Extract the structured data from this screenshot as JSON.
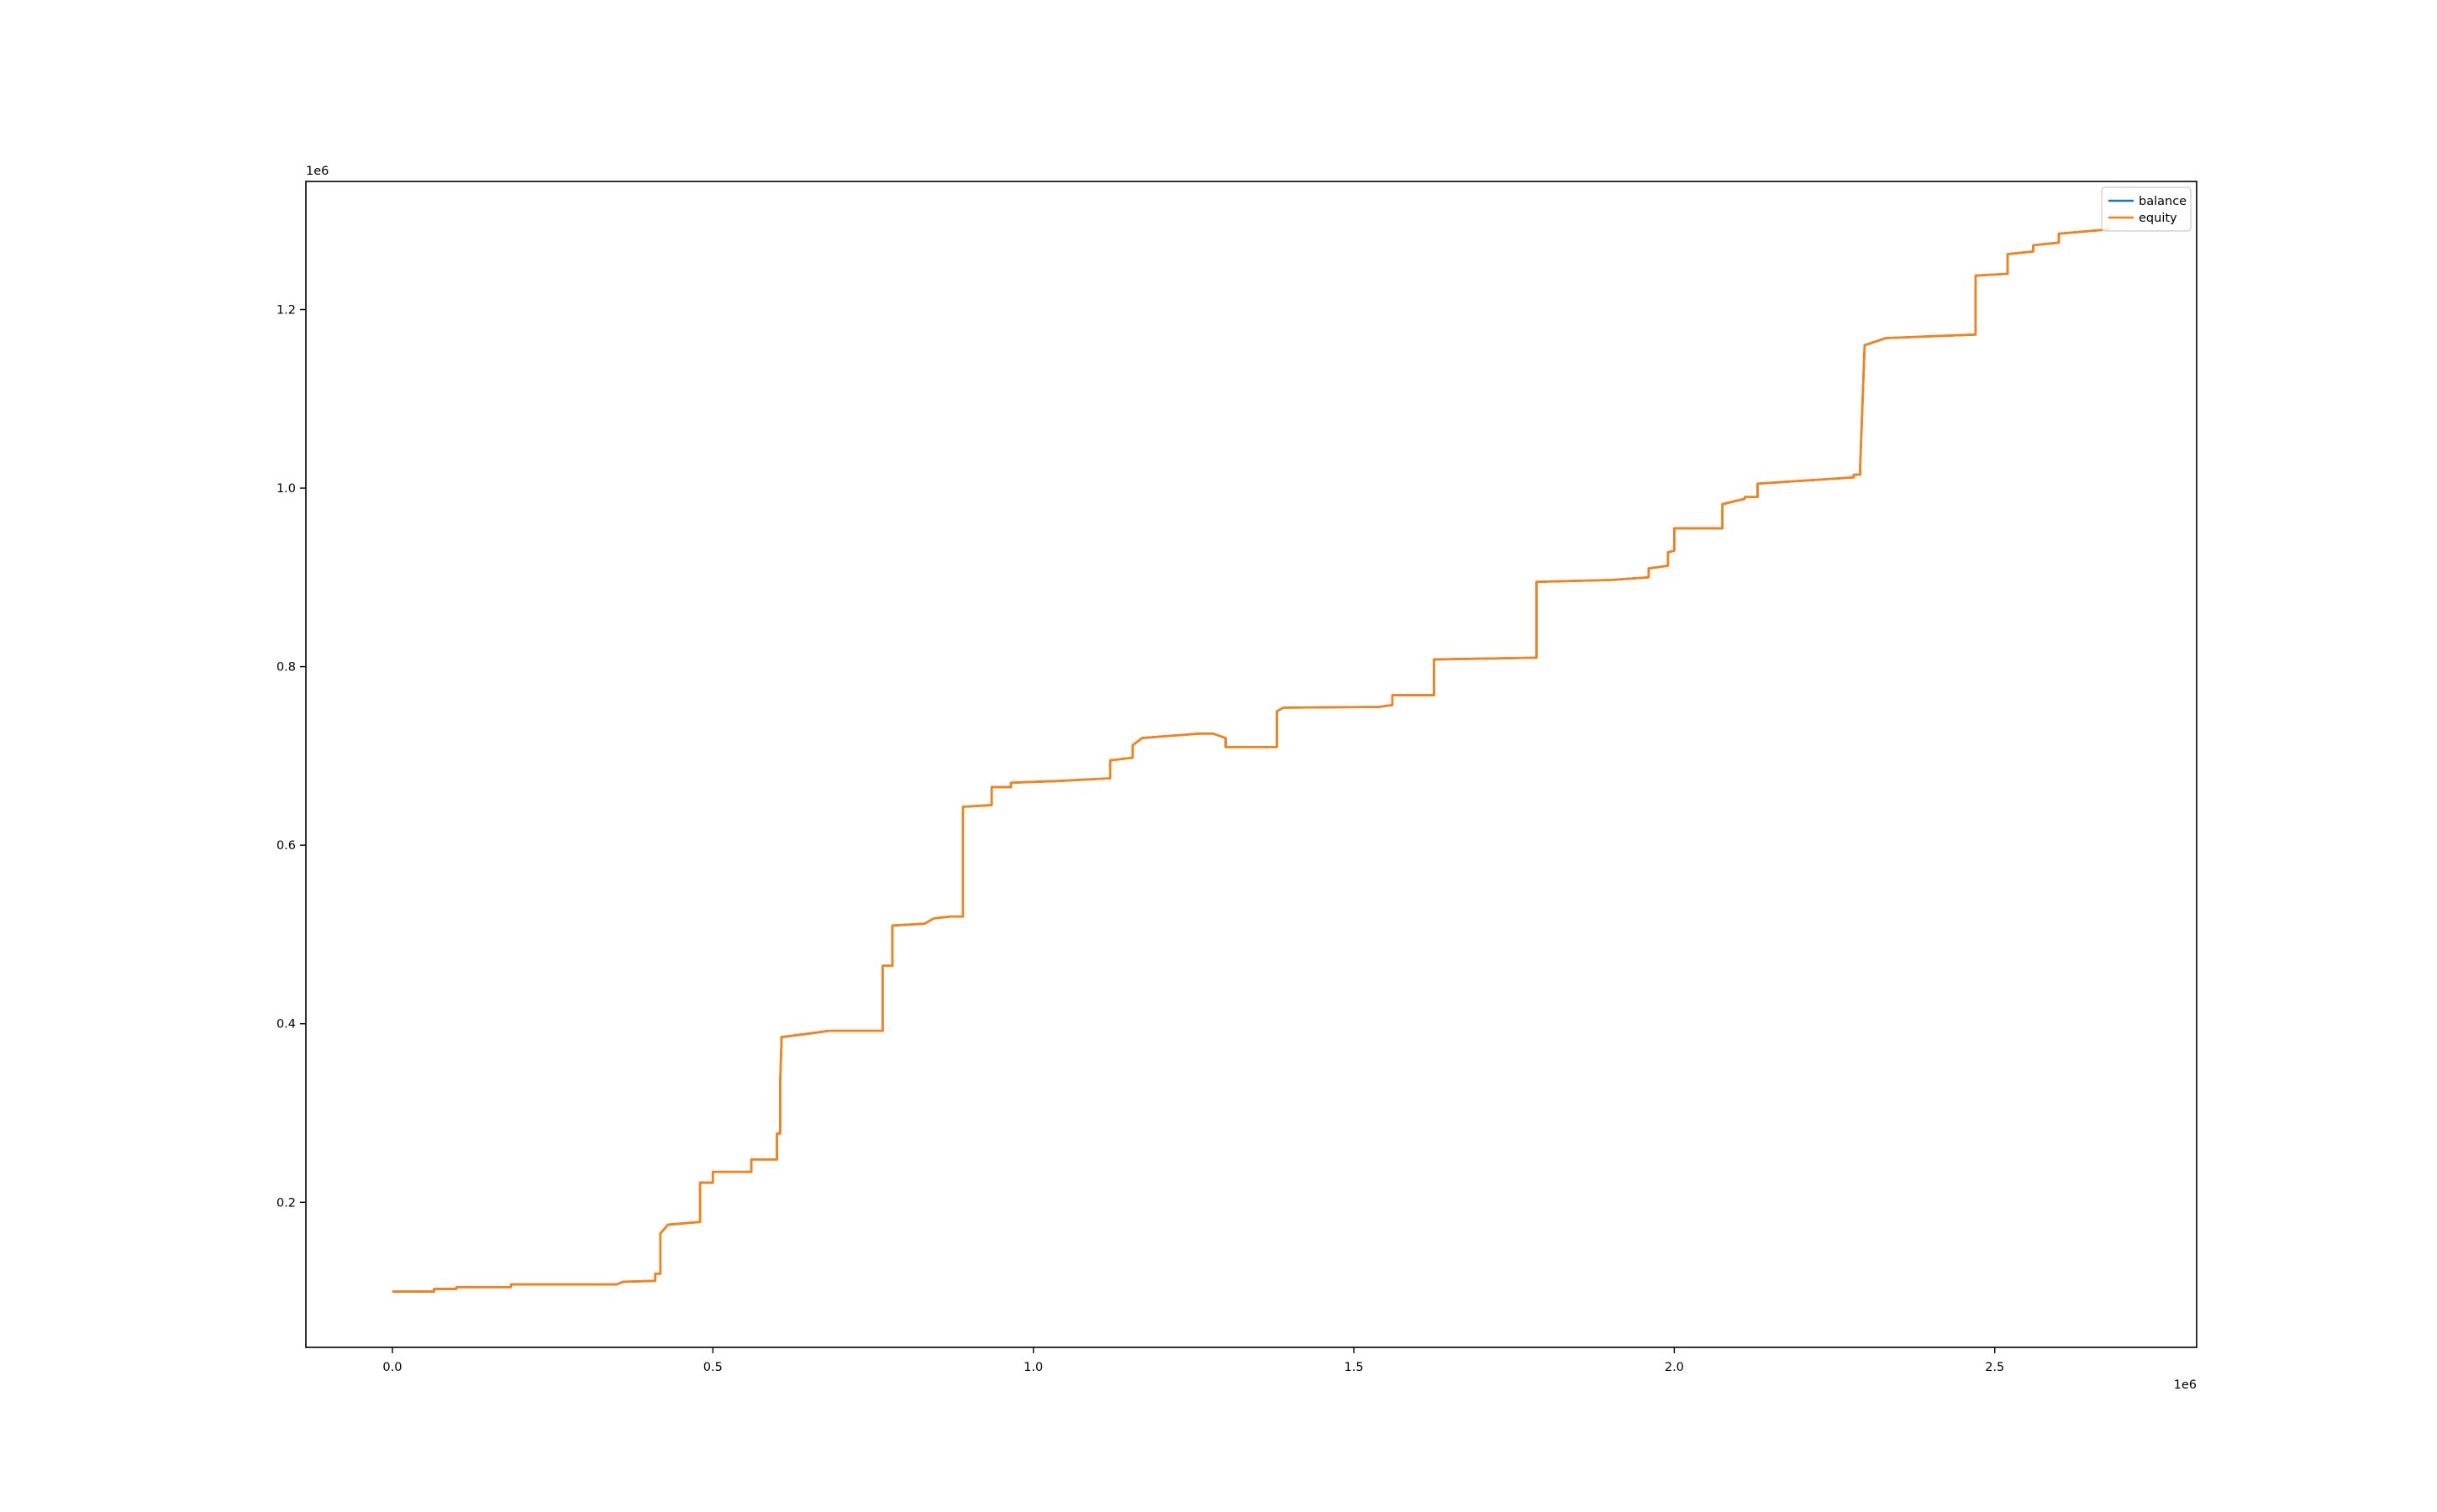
{
  "chart_data": {
    "type": "line",
    "title": "",
    "xlabel": "",
    "ylabel": "",
    "x_offset_label": "1e6",
    "y_offset_label": "1e6",
    "xlim": [
      -0.135,
      2.815
    ],
    "ylim": [
      0.0375,
      1.3435
    ],
    "x_ticks": [
      {
        "value": 0.0,
        "label": "0.0"
      },
      {
        "value": 0.5,
        "label": "0.5"
      },
      {
        "value": 1.0,
        "label": "1.0"
      },
      {
        "value": 1.5,
        "label": "1.5"
      },
      {
        "value": 2.0,
        "label": "2.0"
      },
      {
        "value": 2.5,
        "label": "2.5"
      }
    ],
    "y_ticks": [
      {
        "value": 0.2,
        "label": "0.2"
      },
      {
        "value": 0.4,
        "label": "0.4"
      },
      {
        "value": 0.6,
        "label": "0.6"
      },
      {
        "value": 0.8,
        "label": "0.8"
      },
      {
        "value": 1.0,
        "label": "1.0"
      },
      {
        "value": 1.2,
        "label": "1.2"
      }
    ],
    "grid": false,
    "legend_position": "top-right",
    "series": [
      {
        "name": "balance",
        "color": "#1f77b4",
        "x": [
          0.0,
          0.065,
          0.065,
          0.1,
          0.1,
          0.185,
          0.185,
          0.35,
          0.36,
          0.41,
          0.41,
          0.418,
          0.418,
          0.43,
          0.48,
          0.48,
          0.5,
          0.5,
          0.56,
          0.56,
          0.6,
          0.6,
          0.605,
          0.605,
          0.607,
          0.607,
          0.66,
          0.68,
          0.765,
          0.765,
          0.78,
          0.78,
          0.83,
          0.845,
          0.87,
          0.89,
          0.89,
          0.935,
          0.935,
          0.965,
          0.965,
          1.04,
          1.12,
          1.12,
          1.155,
          1.155,
          1.17,
          1.26,
          1.28,
          1.3,
          1.3,
          1.38,
          1.38,
          1.39,
          1.54,
          1.56,
          1.56,
          1.625,
          1.625,
          1.78,
          1.785,
          1.785,
          1.9,
          1.96,
          1.96,
          1.99,
          1.99,
          2.0,
          2.0,
          2.075,
          2.075,
          2.11,
          2.11,
          2.13,
          2.13,
          2.28,
          2.28,
          2.29,
          2.29,
          2.297,
          2.33,
          2.47,
          2.47,
          2.52,
          2.52,
          2.56,
          2.56,
          2.6,
          2.6,
          2.68
        ],
        "y": [
          0.1,
          0.1,
          0.103,
          0.103,
          0.105,
          0.105,
          0.108,
          0.108,
          0.111,
          0.112,
          0.12,
          0.12,
          0.165,
          0.175,
          0.178,
          0.222,
          0.222,
          0.234,
          0.234,
          0.248,
          0.248,
          0.277,
          0.277,
          0.335,
          0.378,
          0.385,
          0.39,
          0.392,
          0.392,
          0.465,
          0.465,
          0.51,
          0.512,
          0.518,
          0.52,
          0.52,
          0.643,
          0.645,
          0.665,
          0.665,
          0.67,
          0.672,
          0.675,
          0.695,
          0.698,
          0.712,
          0.72,
          0.725,
          0.725,
          0.72,
          0.71,
          0.71,
          0.75,
          0.754,
          0.755,
          0.757,
          0.768,
          0.768,
          0.808,
          0.81,
          0.81,
          0.895,
          0.897,
          0.9,
          0.91,
          0.913,
          0.928,
          0.93,
          0.955,
          0.955,
          0.982,
          0.988,
          0.99,
          0.99,
          1.005,
          1.012,
          1.015,
          1.015,
          1.025,
          1.16,
          1.168,
          1.172,
          1.238,
          1.24,
          1.262,
          1.265,
          1.272,
          1.275,
          1.285,
          1.29
        ]
      },
      {
        "name": "equity",
        "color": "#ff7f0e",
        "x": [
          0.0,
          0.065,
          0.065,
          0.1,
          0.1,
          0.185,
          0.185,
          0.35,
          0.36,
          0.41,
          0.41,
          0.418,
          0.418,
          0.43,
          0.48,
          0.48,
          0.5,
          0.5,
          0.56,
          0.56,
          0.6,
          0.6,
          0.605,
          0.605,
          0.607,
          0.607,
          0.66,
          0.68,
          0.765,
          0.765,
          0.78,
          0.78,
          0.83,
          0.845,
          0.87,
          0.89,
          0.89,
          0.935,
          0.935,
          0.965,
          0.965,
          1.04,
          1.12,
          1.12,
          1.155,
          1.155,
          1.17,
          1.26,
          1.28,
          1.3,
          1.3,
          1.38,
          1.38,
          1.39,
          1.54,
          1.56,
          1.56,
          1.625,
          1.625,
          1.78,
          1.785,
          1.785,
          1.9,
          1.96,
          1.96,
          1.99,
          1.99,
          2.0,
          2.0,
          2.075,
          2.075,
          2.11,
          2.11,
          2.13,
          2.13,
          2.28,
          2.28,
          2.29,
          2.29,
          2.297,
          2.33,
          2.47,
          2.47,
          2.52,
          2.52,
          2.56,
          2.56,
          2.6,
          2.6,
          2.68
        ],
        "y": [
          0.1,
          0.1,
          0.103,
          0.103,
          0.105,
          0.105,
          0.108,
          0.108,
          0.111,
          0.112,
          0.12,
          0.12,
          0.165,
          0.175,
          0.178,
          0.222,
          0.222,
          0.234,
          0.234,
          0.248,
          0.248,
          0.277,
          0.277,
          0.335,
          0.378,
          0.385,
          0.39,
          0.392,
          0.392,
          0.465,
          0.465,
          0.51,
          0.512,
          0.518,
          0.52,
          0.52,
          0.643,
          0.645,
          0.665,
          0.665,
          0.67,
          0.672,
          0.675,
          0.695,
          0.698,
          0.712,
          0.72,
          0.725,
          0.725,
          0.72,
          0.71,
          0.71,
          0.75,
          0.754,
          0.755,
          0.757,
          0.768,
          0.768,
          0.808,
          0.81,
          0.81,
          0.895,
          0.897,
          0.9,
          0.91,
          0.913,
          0.928,
          0.93,
          0.955,
          0.955,
          0.982,
          0.988,
          0.99,
          0.99,
          1.005,
          1.012,
          1.015,
          1.015,
          1.025,
          1.16,
          1.168,
          1.172,
          1.238,
          1.24,
          1.262,
          1.265,
          1.272,
          1.275,
          1.285,
          1.29
        ]
      }
    ]
  }
}
